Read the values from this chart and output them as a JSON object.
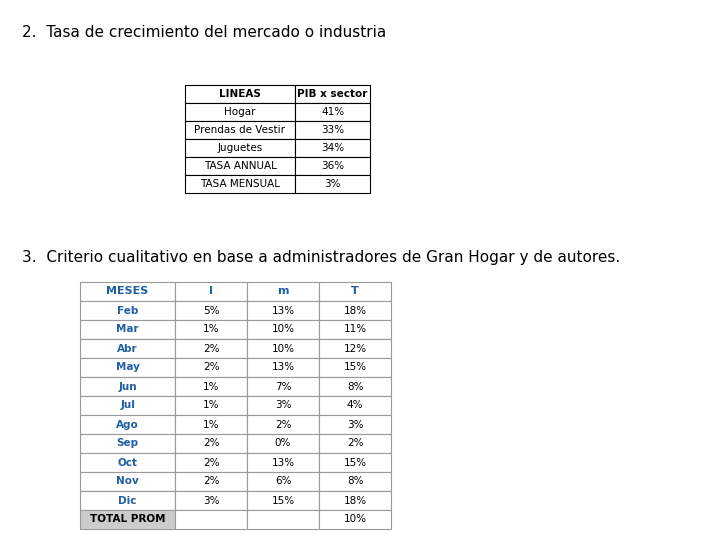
{
  "title1": "2.  Tasa de crecimiento del mercado o industria",
  "title2": "3.  Criterio cualitativo en base a administradores de Gran Hogar y de autores.",
  "table1_headers": [
    "LINEAS",
    "PIB x sector"
  ],
  "table1_rows": [
    [
      "Hogar",
      "41%"
    ],
    [
      "Prendas de Vestir",
      "33%"
    ],
    [
      "Juguetes",
      "34%"
    ],
    [
      "TASA ANNUAL",
      "36%"
    ],
    [
      "TASA MENSUAL",
      "3%"
    ]
  ],
  "table2_headers": [
    "MESES",
    "I",
    "m",
    "T"
  ],
  "table2_rows": [
    [
      "Feb",
      "5%",
      "13%",
      "18%"
    ],
    [
      "Mar",
      "1%",
      "10%",
      "11%"
    ],
    [
      "Abr",
      "2%",
      "10%",
      "12%"
    ],
    [
      "May",
      "2%",
      "13%",
      "15%"
    ],
    [
      "Jun",
      "1%",
      "7%",
      "8%"
    ],
    [
      "Jul",
      "1%",
      "3%",
      "4%"
    ],
    [
      "Ago",
      "1%",
      "2%",
      "3%"
    ],
    [
      "Sep",
      "2%",
      "0%",
      "2%"
    ],
    [
      "Oct",
      "2%",
      "13%",
      "15%"
    ],
    [
      "Nov",
      "2%",
      "6%",
      "8%"
    ],
    [
      "Dic",
      "3%",
      "15%",
      "18%"
    ],
    [
      "TOTAL PROM",
      "",
      "",
      "10%"
    ]
  ],
  "header_color": "#1F5FA6",
  "bg_color": "#ffffff",
  "title1_fontsize": 11,
  "title2_fontsize": 11,
  "table_fontsize": 7.5
}
